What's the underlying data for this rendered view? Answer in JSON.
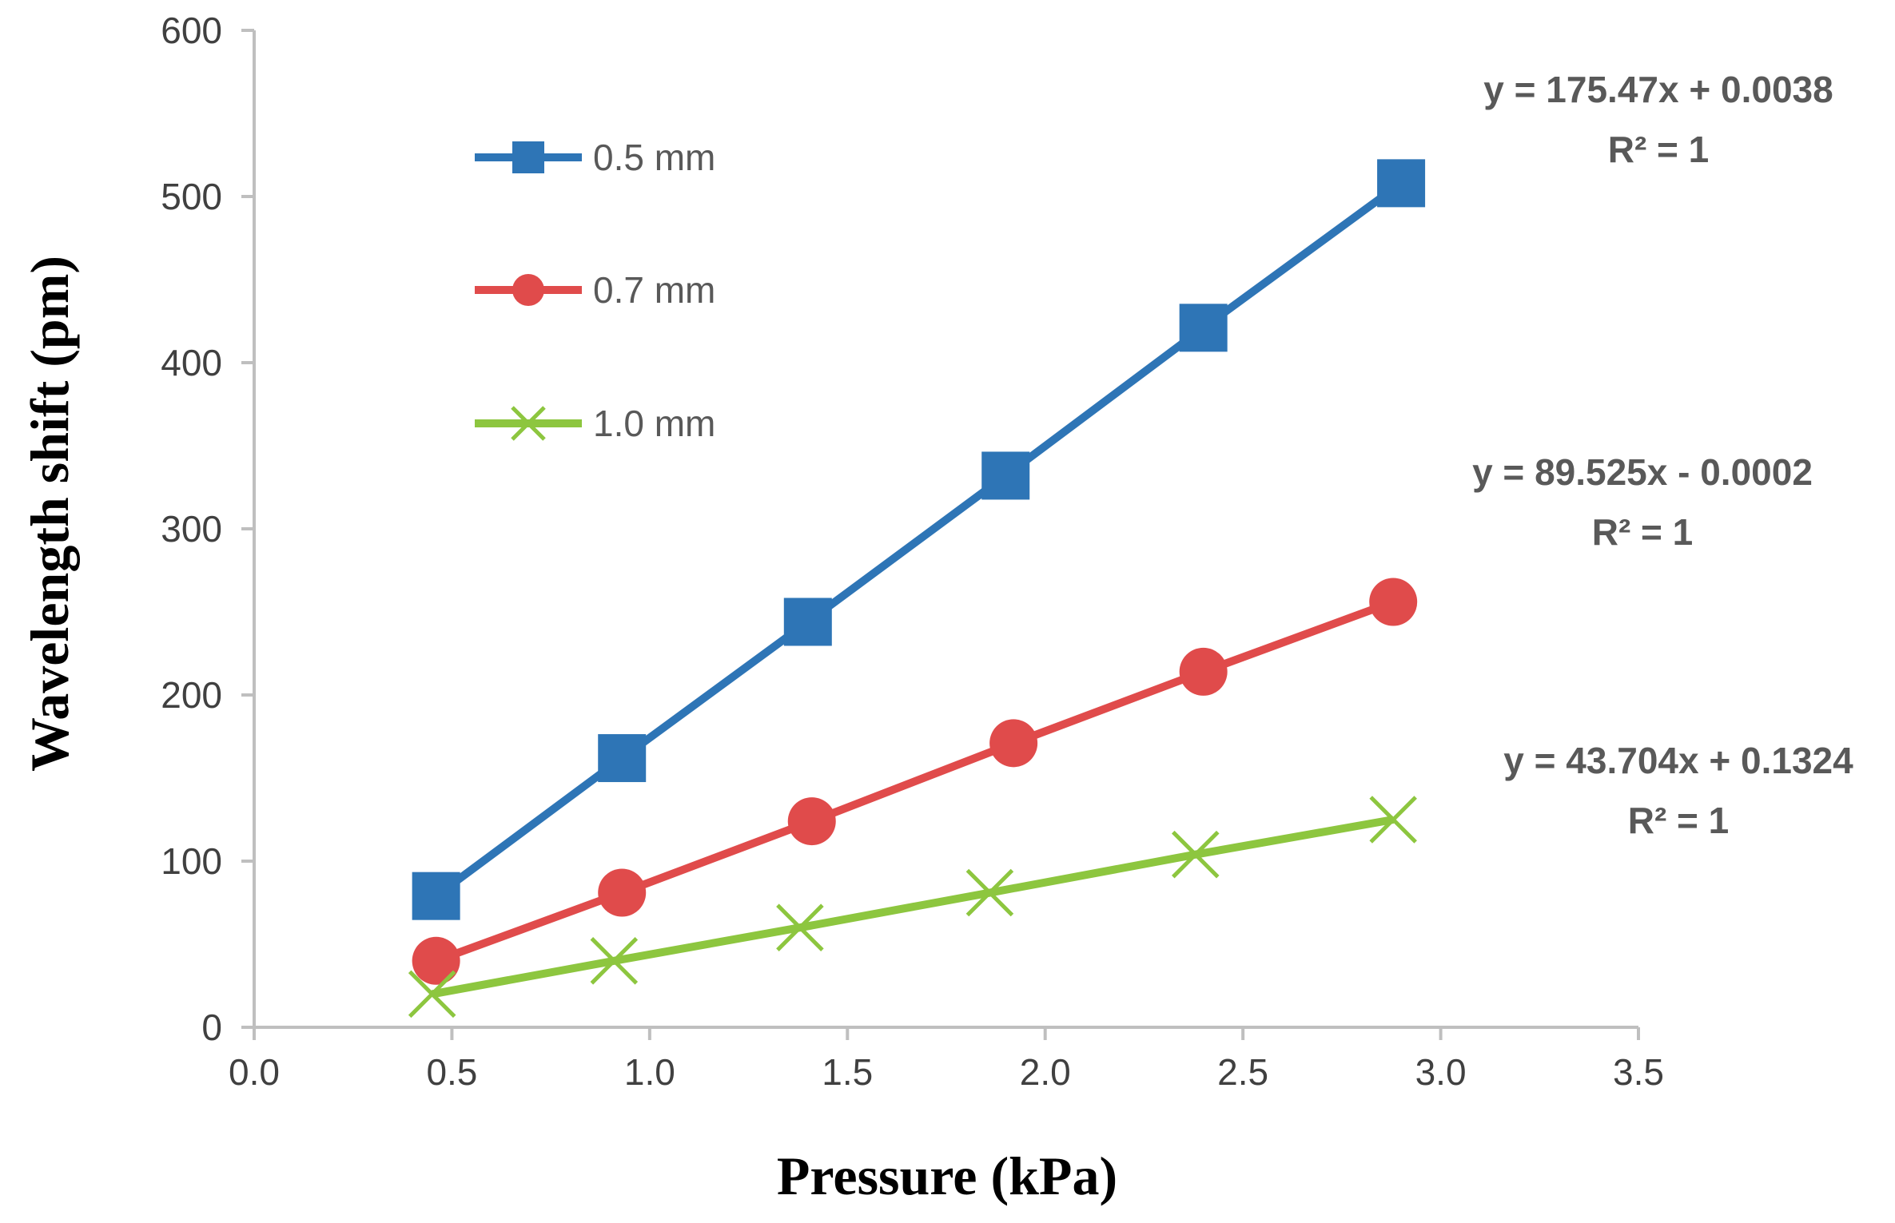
{
  "chart_data": {
    "type": "line",
    "title": "",
    "xlabel": "Pressure (kPa)",
    "ylabel": "Wavelength shift (pm)",
    "xlim": [
      0,
      3.5
    ],
    "ylim": [
      0,
      600
    ],
    "x_ticks": [
      "0.0",
      "0.5",
      "1.0",
      "1.5",
      "2.0",
      "2.5",
      "3.0",
      "3.5"
    ],
    "y_ticks": [
      "0",
      "100",
      "200",
      "300",
      "400",
      "500",
      "600"
    ],
    "grid": false,
    "legend_position": "top-left",
    "series": [
      {
        "name": "0.5 mm",
        "color": "#2E75B6",
        "marker": "square",
        "x": [
          0.46,
          0.93,
          1.4,
          1.9,
          2.4,
          2.9
        ],
        "y": [
          79,
          162,
          244,
          332,
          421,
          508
        ],
        "equation": "y = 175.47x + 0.0038",
        "r2": "R² = 1"
      },
      {
        "name": "0.7 mm",
        "color": "#E04B4B",
        "marker": "circle",
        "x": [
          0.46,
          0.93,
          1.41,
          1.92,
          2.4,
          2.88
        ],
        "y": [
          40,
          81,
          124,
          171,
          214,
          256
        ],
        "equation": "y = 89.525x - 0.0002",
        "r2": "R² = 1"
      },
      {
        "name": "1.0 mm",
        "color": "#8DC63F",
        "marker": "x",
        "x": [
          0.45,
          0.91,
          1.38,
          1.86,
          2.38,
          2.88
        ],
        "y": [
          20,
          40,
          60,
          81,
          104,
          125
        ],
        "equation": "y = 43.704x + 0.1324",
        "r2": "R² = 1"
      }
    ]
  }
}
